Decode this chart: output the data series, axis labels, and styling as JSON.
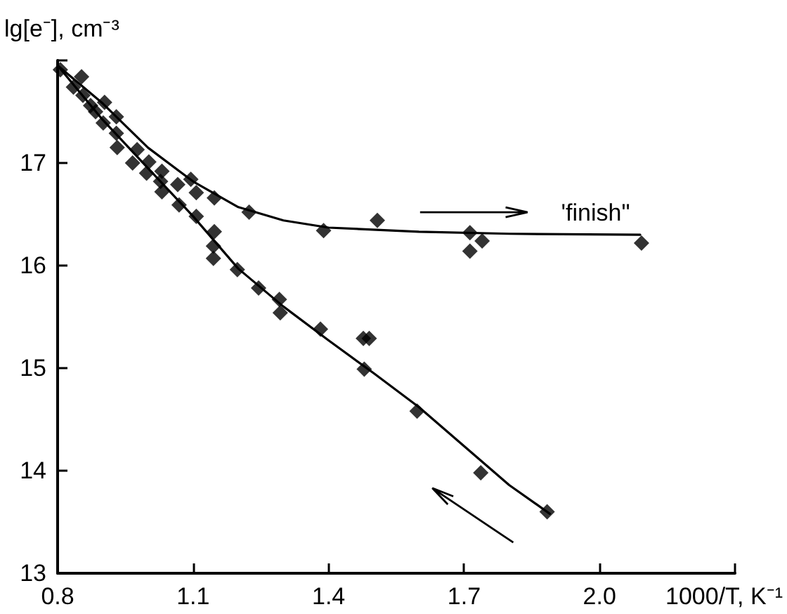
{
  "chart_data": {
    "type": "scatter",
    "xlabel": "1000/T, K⁻¹",
    "ylabel": "lg[e⁻], cm⁻³",
    "annotations": [
      "'finish\""
    ],
    "series": [
      {
        "color": "#000000",
        "marker": "diamond",
        "x": [
          0.806,
          0.853,
          0.835,
          0.856,
          0.873,
          0.884,
          0.904,
          0.901,
          0.93,
          0.93,
          0.932,
          0.966,
          0.976,
          0.997,
          1.002,
          1.031,
          1.028,
          1.031,
          1.069,
          1.066,
          1.095,
          1.107,
          1.107,
          1.147,
          1.147,
          1.145,
          1.145,
          1.198,
          1.224,
          1.389,
          1.508,
          1.713,
          1.74,
          1.713,
          2.093,
          1.245,
          1.291,
          1.293,
          1.382,
          1.477,
          1.49,
          1.479,
          1.596,
          1.737,
          1.884
        ],
        "values": [
          17.91,
          17.84,
          17.74,
          17.66,
          17.56,
          17.5,
          17.59,
          17.39,
          17.45,
          17.29,
          17.15,
          17.0,
          17.13,
          16.9,
          17.01,
          16.92,
          16.82,
          16.72,
          16.59,
          16.79,
          16.84,
          16.71,
          16.48,
          16.66,
          16.33,
          16.19,
          16.07,
          15.96,
          16.52,
          16.34,
          16.44,
          16.32,
          16.24,
          16.14,
          16.22,
          15.78,
          15.67,
          15.54,
          15.38,
          15.29,
          15.29,
          14.99,
          14.58,
          13.98,
          13.6
        ]
      },
      {
        "type": "line",
        "color": "#000000",
        "marker": "none",
        "line_style": "solid",
        "x": [
          0.8,
          0.9,
          1.0,
          1.1,
          1.2,
          1.3,
          1.4,
          1.6,
          1.8,
          2.09
        ],
        "values": [
          17.95,
          17.58,
          17.15,
          16.82,
          16.57,
          16.44,
          16.37,
          16.33,
          16.31,
          16.3
        ]
      },
      {
        "type": "line",
        "color": "#000000",
        "marker": "none",
        "line_style": "solid",
        "x": [
          0.8,
          0.9,
          1.0,
          1.1,
          1.2,
          1.3,
          1.4,
          1.5,
          1.6,
          1.7,
          1.8,
          1.89
        ],
        "values": [
          17.95,
          17.42,
          16.95,
          16.48,
          15.97,
          15.6,
          15.27,
          14.95,
          14.62,
          14.24,
          13.86,
          13.58
        ]
      }
    ],
    "xlim": [
      0.8,
      2.3
    ],
    "xticks": [
      0.8,
      1.1,
      1.4,
      1.7,
      {
        "value": 2.0,
        "label": "2.0"
      },
      {
        "value": 2.3,
        "label": null
      }
    ],
    "ylim": [
      13,
      18
    ],
    "yticks": [
      13,
      14,
      15,
      16,
      17,
      {
        "value": 18,
        "label": null
      }
    ],
    "grid": false
  }
}
